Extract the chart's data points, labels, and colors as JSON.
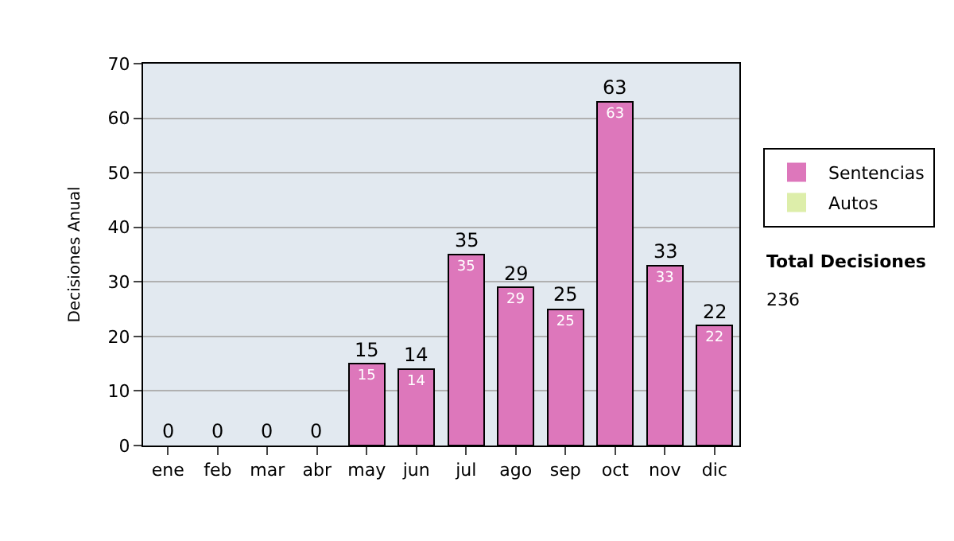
{
  "chart_data": {
    "type": "bar",
    "stacked": true,
    "ylabel": "Decisiones Anual",
    "categories": [
      "ene",
      "feb",
      "mar",
      "abr",
      "may",
      "jun",
      "jul",
      "ago",
      "sep",
      "oct",
      "nov",
      "dic"
    ],
    "series": [
      {
        "name": "Sentencias",
        "color": "#dd77bb",
        "values": [
          0,
          0,
          0,
          0,
          15,
          14,
          35,
          29,
          25,
          63,
          33,
          22
        ],
        "value_labels": [
          null,
          null,
          null,
          null,
          "15",
          "14",
          "35",
          "29",
          "25",
          "63",
          "33",
          "22"
        ]
      },
      {
        "name": "Autos",
        "color": "#ddeeaa",
        "values": [
          0,
          0,
          0,
          0,
          0,
          0,
          0,
          0,
          0,
          0,
          0,
          0
        ]
      }
    ],
    "totals": [
      "0",
      "0",
      "0",
      "0",
      "15",
      "14",
      "35",
      "29",
      "25",
      "63",
      "33",
      "22"
    ],
    "ylim": [
      0,
      70
    ],
    "yticks": [
      0,
      10,
      20,
      30,
      40,
      50,
      60,
      70
    ],
    "grid": "y",
    "legend": "right",
    "annotations": [
      "Total Decisiones",
      "236"
    ]
  }
}
